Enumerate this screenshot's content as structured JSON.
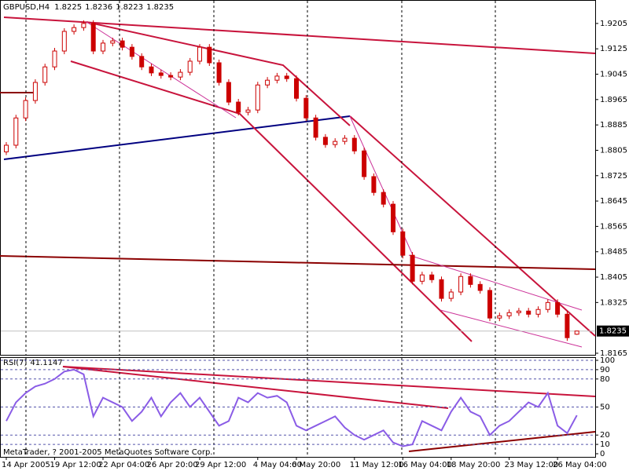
{
  "chart_data": [
    {
      "type": "candlestick",
      "title": "GBPUSD,H4",
      "color": "#cc0000",
      "categories": [
        "14 Apr 2005",
        null,
        null,
        null,
        null,
        "19 Apr 12:00",
        null,
        null,
        null,
        null,
        "22 Apr 04:00",
        null,
        null,
        null,
        null,
        "26 Apr 20:00",
        null,
        null,
        null,
        null,
        "29 Apr 12:00",
        null,
        null,
        null,
        null,
        null,
        "4 May 04:00",
        null,
        null,
        null,
        "6 May 20:00",
        null,
        null,
        null,
        null,
        null,
        "11 May 12:00",
        null,
        null,
        null,
        null,
        "16 May 04:00",
        null,
        null,
        null,
        null,
        "18 May 20:00",
        null,
        null,
        null,
        null,
        null,
        "23 May 12:00",
        null,
        null,
        null,
        null,
        "26 May 04:00",
        null,
        null
      ],
      "open": [
        1.88,
        1.8821,
        1.8907,
        1.8962,
        1.9019,
        1.9068,
        1.9118,
        1.918,
        1.9192,
        1.9205,
        1.9118,
        1.9143,
        1.915,
        1.913,
        1.9101,
        1.9068,
        1.9049,
        1.9041,
        1.9036,
        1.9051,
        1.9086,
        1.913,
        1.9081,
        1.9019,
        1.8957,
        1.8925,
        1.8932,
        1.9011,
        1.9026,
        1.9039,
        1.9031,
        1.8969,
        1.8907,
        1.8846,
        1.8823,
        1.8833,
        1.8843,
        1.8803,
        1.8722,
        1.8672,
        1.8635,
        1.8548,
        1.8474,
        1.8392,
        1.8412,
        1.8397,
        1.8338,
        1.8358,
        1.8407,
        1.8382,
        1.8363,
        1.8276,
        1.8283,
        1.8293,
        1.8298,
        1.8288,
        1.8303,
        1.8325,
        1.8288,
        1.8225
      ],
      "high": [
        1.8831,
        1.8917,
        1.8972,
        1.9029,
        1.9078,
        1.9128,
        1.919,
        1.9202,
        1.9215,
        1.9215,
        1.9153,
        1.916,
        1.916,
        1.914,
        1.9111,
        1.9078,
        1.9059,
        1.9051,
        1.9061,
        1.9096,
        1.914,
        1.914,
        1.9091,
        1.9029,
        1.8967,
        1.8942,
        1.9021,
        1.9036,
        1.9049,
        1.9049,
        1.9041,
        1.8979,
        1.8917,
        1.8856,
        1.8843,
        1.8853,
        1.8853,
        1.8813,
        1.8732,
        1.8682,
        1.8645,
        1.8558,
        1.8484,
        1.8422,
        1.8422,
        1.8407,
        1.8368,
        1.8417,
        1.8417,
        1.8392,
        1.8373,
        1.8293,
        1.8303,
        1.8308,
        1.8308,
        1.8313,
        1.8335,
        1.8335,
        1.8298,
        1.8236
      ],
      "low": [
        1.879,
        1.8811,
        1.8897,
        1.8952,
        1.9009,
        1.9058,
        1.9108,
        1.917,
        1.9182,
        1.9108,
        1.9108,
        1.9133,
        1.912,
        1.9091,
        1.9058,
        1.9039,
        1.9031,
        1.9026,
        1.9026,
        1.9041,
        1.9076,
        1.9071,
        1.9009,
        1.8947,
        1.8915,
        1.8915,
        1.8922,
        1.9001,
        1.9016,
        1.9021,
        1.8959,
        1.8897,
        1.8836,
        1.8813,
        1.8813,
        1.8823,
        1.8793,
        1.8712,
        1.8662,
        1.8625,
        1.8538,
        1.8464,
        1.8382,
        1.8382,
        1.8387,
        1.8328,
        1.8328,
        1.8348,
        1.8372,
        1.8353,
        1.8266,
        1.8266,
        1.8273,
        1.8283,
        1.8278,
        1.8278,
        1.8293,
        1.8278,
        1.8204,
        1.8223
      ],
      "close": [
        1.8821,
        1.8907,
        1.8962,
        1.9019,
        1.9068,
        1.9118,
        1.918,
        1.9192,
        1.9205,
        1.9118,
        1.9143,
        1.915,
        1.913,
        1.9101,
        1.9068,
        1.9049,
        1.9041,
        1.9036,
        1.9051,
        1.9086,
        1.913,
        1.9081,
        1.9019,
        1.8957,
        1.8925,
        1.8932,
        1.9011,
        1.9026,
        1.9039,
        1.9031,
        1.8969,
        1.8907,
        1.8846,
        1.8823,
        1.8833,
        1.8843,
        1.8803,
        1.8722,
        1.8672,
        1.8635,
        1.8548,
        1.8474,
        1.8392,
        1.8412,
        1.8397,
        1.8338,
        1.8358,
        1.8407,
        1.8382,
        1.8363,
        1.8276,
        1.8283,
        1.8293,
        1.8298,
        1.8288,
        1.8303,
        1.8325,
        1.8288,
        1.8214,
        1.8235
      ],
      "ylim": [
        1.816,
        1.9274
      ],
      "yticks": [
        1.9205,
        1.9125,
        1.9045,
        1.8965,
        1.8885,
        1.8805,
        1.8725,
        1.8645,
        1.8565,
        1.8485,
        1.8405,
        1.8325,
        1.8165
      ]
    },
    {
      "type": "line",
      "title": "RSI(7)",
      "series": [
        {
          "name": "RSI(7)",
          "color": "#8a5ce6",
          "values": [
            35,
            55,
            65,
            72,
            75,
            80,
            88,
            90,
            85,
            40,
            60,
            55,
            50,
            35,
            45,
            60,
            40,
            55,
            65,
            50,
            60,
            45,
            30,
            35,
            60,
            55,
            65,
            60,
            62,
            55,
            30,
            25,
            30,
            35,
            40,
            28,
            20,
            15,
            20,
            25,
            12,
            8,
            10,
            35,
            30,
            25,
            45,
            60,
            45,
            40,
            20,
            30,
            35,
            45,
            55,
            50,
            65,
            30,
            22,
            41.1147
          ]
        }
      ],
      "ylim": [
        0,
        100
      ],
      "yticks": [
        100,
        90,
        80,
        50,
        20,
        10,
        0
      ]
    }
  ],
  "footer": "MetaTrader, ? 2001-2005 MetaQuotes Software Corp."
}
